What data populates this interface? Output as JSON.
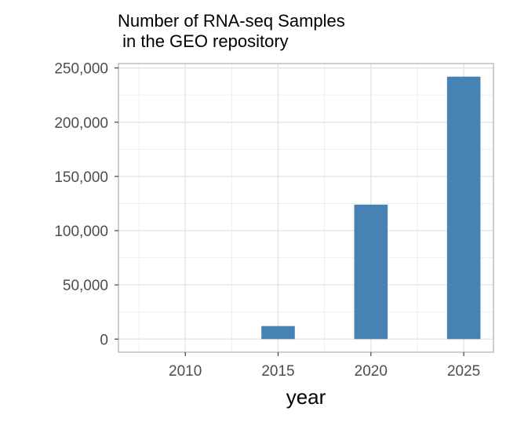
{
  "chart_data": {
    "type": "bar",
    "title_lines": [
      "Number of RNA-seq Samples",
      " in the GEO repository"
    ],
    "xlabel": "year",
    "ylabel": "",
    "x": [
      2010,
      2015,
      2020,
      2025
    ],
    "values": [
      0,
      12000,
      124000,
      242000
    ],
    "xlim": [
      2006.4,
      2026.6
    ],
    "ylim": [
      -12100,
      254100
    ],
    "x_ticks": [
      2010,
      2015,
      2020,
      2025
    ],
    "x_tick_labels": [
      "2010",
      "2015",
      "2020",
      "2025"
    ],
    "y_ticks": [
      0,
      50000,
      100000,
      150000,
      200000,
      250000
    ],
    "y_tick_labels": [
      "0",
      "50,000",
      "100,000",
      "150,000",
      "200,000",
      "250,000"
    ],
    "bar_width_years": 1.8,
    "bar_color": "#4682B4",
    "grid": true,
    "grid_color": "#ebebeb",
    "panel_border_color": "#b3b3b3",
    "legend": "none"
  }
}
